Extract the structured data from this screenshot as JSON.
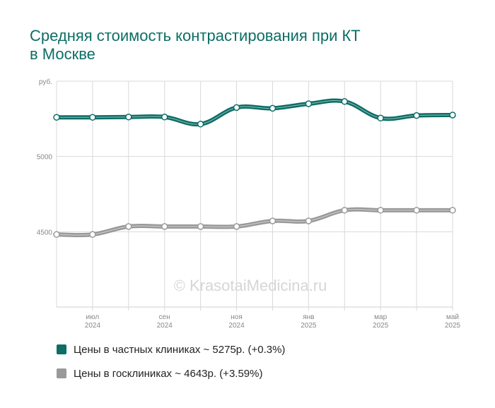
{
  "chart_data": {
    "type": "line",
    "title_lines": [
      "Средняя стоимость контрастирования при КТ",
      "в Москве"
    ],
    "y_unit": "руб.",
    "ylim": [
      4000,
      5500
    ],
    "yticks": [
      {
        "value": 5500,
        "label": "руб."
      },
      {
        "value": 5000,
        "label": "5000"
      },
      {
        "value": 4500,
        "label": "4500"
      }
    ],
    "x": [
      "2024-06",
      "2024-07",
      "2024-08",
      "2024-09",
      "2024-10",
      "2024-11",
      "2024-12",
      "2025-01",
      "2025-02",
      "2025-03",
      "2025-04",
      "2025-05"
    ],
    "x_tick_labels": [
      {
        "index": 1,
        "month": "июл",
        "year": "2024"
      },
      {
        "index": 3,
        "month": "сен",
        "year": "2024"
      },
      {
        "index": 5,
        "month": "ноя",
        "year": "2024"
      },
      {
        "index": 7,
        "month": "янв",
        "year": "2025"
      },
      {
        "index": 9,
        "month": "мар",
        "year": "2025"
      },
      {
        "index": 11,
        "month": "май",
        "year": "2025"
      }
    ],
    "grid": true,
    "legend_position": "bottom-left",
    "watermark": "© KrasotaiMedicina.ru",
    "series": [
      {
        "name": "Цены в частных клиниках ~ 5275р. (+0.3%)",
        "color": "#0c6e66",
        "values": [
          5260,
          5260,
          5262,
          5262,
          5215,
          5325,
          5320,
          5350,
          5365,
          5255,
          5272,
          5275
        ]
      },
      {
        "name": "Цены в госклиниках ~ 4643р. (+3.59%)",
        "color": "#999999",
        "values": [
          4482,
          4482,
          4535,
          4535,
          4535,
          4535,
          4572,
          4572,
          4643,
          4643,
          4643,
          4643
        ]
      }
    ]
  }
}
